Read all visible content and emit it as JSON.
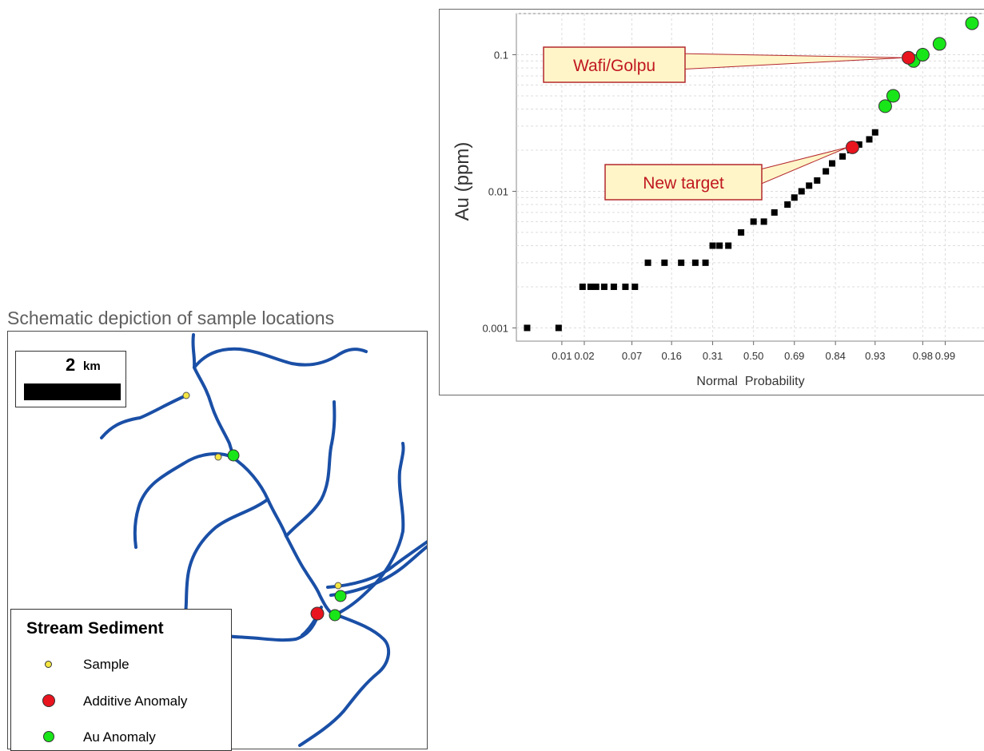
{
  "map": {
    "title": "Schematic depiction of sample locations",
    "scale": {
      "value": "2",
      "unit": "km"
    },
    "legend": {
      "title": "Stream Sediment",
      "items": [
        {
          "label": "Sample",
          "color": "#f5e642"
        },
        {
          "label": "Additive Anomaly",
          "color": "#e8141e"
        },
        {
          "label": "Au Anomaly",
          "color": "#19e619"
        }
      ]
    },
    "stream_color": "#1a4fa6"
  },
  "chart_data": {
    "type": "scatter",
    "title": "",
    "xlabel": "Normal  Probability",
    "ylabel": "Au (ppm)",
    "x_scale": "normal-probability",
    "y_scale": "log",
    "ylim": [
      0.0008,
      0.2
    ],
    "x_ticks": [
      "0.01",
      "0.02",
      "0.07",
      "0.16",
      "0.31",
      "0.50",
      "0.69",
      "0.84",
      "0.93",
      "0.98",
      "0.99"
    ],
    "y_ticks": [
      "0.001",
      "0.01",
      "0.1"
    ],
    "grid": true,
    "series": [
      {
        "marker": "square",
        "color": "#000000",
        "points": [
          [
            0.003,
            0.001
          ],
          [
            0.009,
            0.001
          ],
          [
            0.019,
            0.002
          ],
          [
            0.024,
            0.002
          ],
          [
            0.028,
            0.002
          ],
          [
            0.035,
            0.002
          ],
          [
            0.045,
            0.002
          ],
          [
            0.06,
            0.002
          ],
          [
            0.075,
            0.002
          ],
          [
            0.1,
            0.003
          ],
          [
            0.14,
            0.003
          ],
          [
            0.19,
            0.003
          ],
          [
            0.24,
            0.003
          ],
          [
            0.28,
            0.003
          ],
          [
            0.31,
            0.004
          ],
          [
            0.34,
            0.004
          ],
          [
            0.38,
            0.004
          ],
          [
            0.44,
            0.005
          ],
          [
            0.5,
            0.006
          ],
          [
            0.55,
            0.006
          ],
          [
            0.6,
            0.007
          ],
          [
            0.66,
            0.008
          ],
          [
            0.69,
            0.009
          ],
          [
            0.72,
            0.01
          ],
          [
            0.75,
            0.011
          ],
          [
            0.78,
            0.012
          ],
          [
            0.81,
            0.014
          ],
          [
            0.83,
            0.016
          ],
          [
            0.86,
            0.018
          ],
          [
            0.88,
            0.02
          ],
          [
            0.9,
            0.022
          ],
          [
            0.92,
            0.024
          ],
          [
            0.93,
            0.027
          ]
        ]
      },
      {
        "marker": "circle",
        "color": "#19e619",
        "points": [
          [
            0.945,
            0.042
          ],
          [
            0.955,
            0.05
          ],
          [
            0.974,
            0.09
          ],
          [
            0.98,
            0.1
          ],
          [
            0.988,
            0.12
          ],
          [
            0.996,
            0.17
          ]
        ]
      },
      {
        "marker": "circle",
        "color": "#e8141e",
        "points": [
          [
            0.885,
            0.021
          ],
          [
            0.97,
            0.095
          ]
        ]
      }
    ],
    "annotations": [
      {
        "text": "Wafi/Golpu",
        "target": [
          0.97,
          0.095
        ]
      },
      {
        "text": "New target",
        "target": [
          0.885,
          0.021
        ]
      }
    ]
  }
}
